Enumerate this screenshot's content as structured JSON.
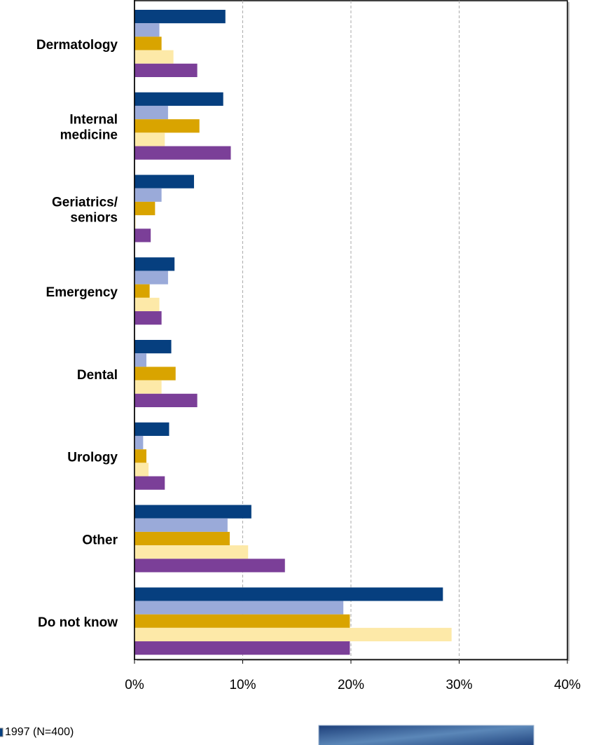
{
  "chart_data": {
    "type": "hbar",
    "categories": [
      "Dermatology",
      "Internal\nmedicine",
      "Geriatrics/\nseniors",
      "Emergency",
      "Dental",
      "Urology",
      "Other",
      "Do not know"
    ],
    "series": [
      {
        "name": "1997 (N=400)",
        "color": "#063f7f",
        "values": [
          8.4,
          8.2,
          5.5,
          3.7,
          3.4,
          3.2,
          10.8,
          28.5
        ]
      },
      {
        "color": "#9aaad9",
        "values": [
          2.3,
          3.1,
          2.5,
          3.1,
          1.1,
          0.8,
          8.6,
          19.3
        ]
      },
      {
        "color": "#d9a400",
        "values": [
          2.5,
          6.0,
          1.9,
          1.4,
          3.8,
          1.1,
          8.8,
          19.9
        ]
      },
      {
        "color": "#fde9a8",
        "values": [
          3.6,
          2.8,
          0.1,
          2.3,
          2.5,
          1.3,
          10.5,
          29.3
        ]
      },
      {
        "color": "#7b3f98",
        "values": [
          5.8,
          8.9,
          1.5,
          2.5,
          5.8,
          2.8,
          13.9,
          19.9
        ]
      }
    ],
    "xlim": [
      0,
      40
    ],
    "xticks": [
      {
        "value": 0,
        "label": "0%"
      },
      {
        "value": 10,
        "label": "10%"
      },
      {
        "value": 20,
        "label": "20%"
      },
      {
        "value": 30,
        "label": "30%"
      },
      {
        "value": 40,
        "label": "40%"
      }
    ],
    "grid": true
  }
}
